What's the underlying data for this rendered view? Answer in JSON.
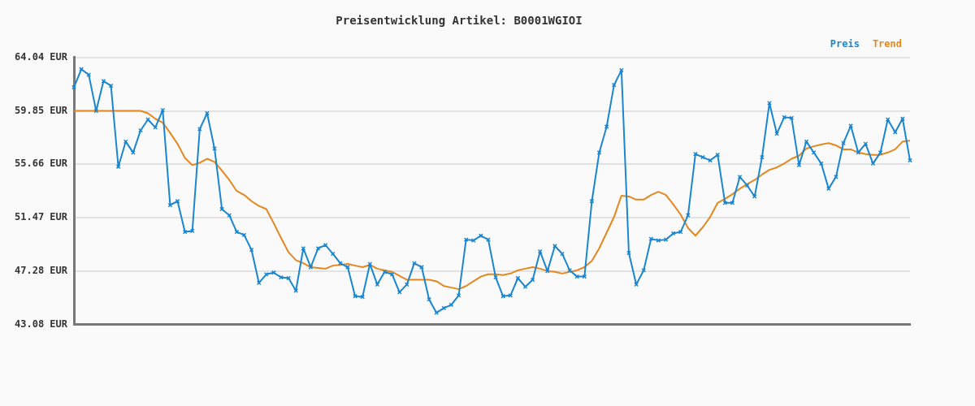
{
  "chart_data": {
    "type": "line",
    "title": "Preisentwicklung Artikel: B0001WGIOI",
    "categories": [
      null,
      null,
      null,
      null,
      null,
      null,
      null,
      null,
      null,
      null,
      null,
      null,
      null,
      null,
      null,
      null,
      null,
      null,
      null,
      null,
      null,
      null,
      null,
      null,
      null,
      null,
      null,
      null,
      null,
      null,
      null,
      null,
      null,
      null,
      null,
      null,
      null,
      null,
      null,
      null,
      null,
      null,
      null,
      null,
      null,
      null,
      null,
      null,
      null,
      null,
      null,
      null,
      null,
      null,
      null,
      null,
      null,
      null,
      null,
      null,
      null,
      null,
      null,
      null,
      null,
      null,
      null,
      null,
      null,
      null,
      null,
      null,
      null,
      null,
      null,
      null,
      null,
      null,
      null,
      null,
      null,
      null,
      null,
      null,
      null,
      null,
      null,
      null,
      null,
      null,
      null,
      null,
      null,
      null,
      null,
      null,
      null,
      null,
      null,
      null,
      null,
      null,
      null,
      null,
      null,
      null,
      null,
      null,
      null,
      null,
      null,
      null,
      null,
      null
    ],
    "series": [
      {
        "name": "Preis",
        "color": "#1a86d0",
        "values": [
          61.7,
          63.12,
          62.68,
          59.85,
          62.19,
          61.82,
          55.47,
          57.44,
          56.58,
          58.31,
          59.17,
          58.55,
          59.91,
          52.45,
          52.76,
          50.35,
          50.42,
          58.43,
          59.66,
          56.89,
          52.14,
          51.65,
          50.35,
          50.11,
          48.94,
          46.35,
          47.02,
          47.15,
          46.78,
          46.72,
          45.73,
          49.06,
          47.58,
          49.06,
          49.31,
          48.63,
          47.89,
          47.58,
          45.3,
          45.24,
          47.83,
          46.22,
          47.21,
          47.02,
          45.61,
          46.22,
          47.89,
          47.58,
          45.05,
          44.0,
          44.37,
          44.62,
          45.36,
          49.74,
          49.68,
          50.05,
          49.74,
          46.78,
          45.3,
          45.36,
          46.72,
          46.04,
          46.59,
          48.81,
          47.27,
          49.24,
          48.63,
          47.33,
          46.84,
          46.84,
          52.76,
          56.58,
          58.61,
          61.88,
          63.05,
          48.69,
          46.22,
          47.33,
          49.8,
          49.68,
          49.74,
          50.23,
          50.35,
          51.65,
          56.46,
          56.21,
          55.96,
          56.4,
          52.63,
          52.63,
          54.67,
          53.99,
          53.13,
          56.21,
          60.46,
          58.06,
          59.35,
          59.29,
          55.59,
          57.44,
          56.58,
          55.72,
          53.74,
          54.67,
          57.32,
          58.68,
          56.58,
          57.26,
          55.72,
          56.58,
          59.17,
          58.18,
          59.23,
          55.96
        ]
      },
      {
        "name": "Trend",
        "color": "#e5871f",
        "marker": "none",
        "values": [
          59.85,
          59.85,
          59.85,
          59.85,
          59.85,
          59.85,
          59.85,
          59.85,
          59.85,
          59.85,
          59.66,
          59.23,
          58.92,
          58.12,
          57.26,
          56.15,
          55.59,
          55.78,
          56.09,
          55.84,
          55.16,
          54.42,
          53.56,
          53.25,
          52.76,
          52.39,
          52.14,
          51.03,
          49.86,
          48.75,
          48.13,
          47.89,
          47.58,
          47.52,
          47.46,
          47.7,
          47.76,
          47.83,
          47.7,
          47.58,
          47.76,
          47.46,
          47.33,
          47.21,
          46.9,
          46.59,
          46.59,
          46.59,
          46.59,
          46.47,
          46.1,
          45.98,
          45.85,
          46.1,
          46.47,
          46.84,
          47.02,
          47.02,
          46.96,
          47.08,
          47.33,
          47.46,
          47.58,
          47.46,
          47.27,
          47.21,
          47.08,
          47.21,
          47.33,
          47.58,
          48.07,
          49.06,
          50.29,
          51.53,
          53.19,
          53.13,
          52.88,
          52.88,
          53.25,
          53.5,
          53.25,
          52.51,
          51.71,
          50.66,
          50.05,
          50.72,
          51.53,
          52.63,
          52.94,
          53.31,
          53.74,
          54.11,
          54.42,
          54.85,
          55.22,
          55.41,
          55.72,
          56.09,
          56.33,
          56.89,
          57.07,
          57.2,
          57.32,
          57.14,
          56.83,
          56.83,
          56.58,
          56.46,
          56.4,
          56.4,
          56.58,
          56.83,
          57.44,
          57.51
        ]
      }
    ],
    "ylim": [
      43.08,
      64.04
    ],
    "yticks": [
      {
        "value": 43.08,
        "label": "43.08 EUR"
      },
      {
        "value": 47.28,
        "label": "47.28 EUR"
      },
      {
        "value": 51.47,
        "label": "51.47 EUR"
      },
      {
        "value": 55.66,
        "label": "55.66 EUR"
      },
      {
        "value": 59.85,
        "label": "59.85 EUR"
      },
      {
        "value": 64.04,
        "label": "64.04 EUR"
      }
    ],
    "grid": "y",
    "legend": "top right",
    "marker": "cross",
    "line_style": "solid"
  }
}
